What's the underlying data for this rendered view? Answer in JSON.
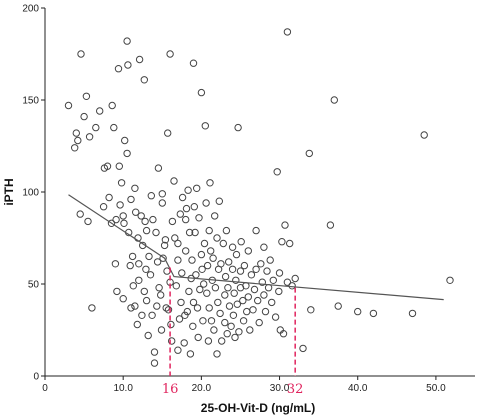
{
  "chart_data": {
    "type": "scatter",
    "xlabel": "25-OH-Vit-D (ng/mL)",
    "ylabel": "iPTH",
    "xlim": [
      0,
      55
    ],
    "ylim": [
      0,
      200
    ],
    "xticks": [
      {
        "value": 0,
        "label": "0"
      },
      {
        "value": 10,
        "label": "10.0"
      },
      {
        "value": 20,
        "label": "20.0"
      },
      {
        "value": 30,
        "label": "30.0"
      },
      {
        "value": 40,
        "label": "40.0"
      },
      {
        "value": 50,
        "label": "50.0"
      }
    ],
    "yticks": [
      {
        "value": 0,
        "label": "0"
      },
      {
        "value": 50,
        "label": "50"
      },
      {
        "value": 100,
        "label": "100"
      },
      {
        "value": 150,
        "label": "150"
      },
      {
        "value": 200,
        "label": "200"
      }
    ],
    "grid": false,
    "marker_color": "#444444",
    "fit_color": "#555555",
    "threshold_color": "#e0245e",
    "fit_line": [
      [
        3.0,
        98.5
      ],
      [
        15.3,
        64.0
      ],
      [
        16.5,
        54.0
      ],
      [
        51.0,
        41.5
      ]
    ],
    "thresholds": [
      {
        "x": 16,
        "y_top": 59,
        "label": "16"
      },
      {
        "x": 32,
        "y_top": 48,
        "label": "32"
      }
    ],
    "points": [
      [
        3.0,
        147
      ],
      [
        3.8,
        124
      ],
      [
        4.0,
        132
      ],
      [
        4.2,
        128
      ],
      [
        4.5,
        88
      ],
      [
        4.6,
        175
      ],
      [
        5.0,
        141
      ],
      [
        5.3,
        152
      ],
      [
        5.5,
        84
      ],
      [
        5.7,
        130
      ],
      [
        6.0,
        37
      ],
      [
        6.5,
        135
      ],
      [
        7.0,
        144
      ],
      [
        7.5,
        92
      ],
      [
        7.6,
        113
      ],
      [
        8.0,
        114
      ],
      [
        8.2,
        97
      ],
      [
        8.5,
        83
      ],
      [
        8.6,
        147
      ],
      [
        8.8,
        135
      ],
      [
        9.0,
        61
      ],
      [
        9.1,
        85
      ],
      [
        9.2,
        46
      ],
      [
        9.4,
        167
      ],
      [
        9.5,
        114
      ],
      [
        9.6,
        93
      ],
      [
        9.8,
        105
      ],
      [
        10.0,
        42
      ],
      [
        10.0,
        87
      ],
      [
        10.1,
        83
      ],
      [
        10.2,
        128
      ],
      [
        10.5,
        121
      ],
      [
        10.5,
        182
      ],
      [
        10.6,
        169
      ],
      [
        10.7,
        78
      ],
      [
        10.9,
        60
      ],
      [
        11.0,
        37
      ],
      [
        11.0,
        96
      ],
      [
        11.2,
        65
      ],
      [
        11.3,
        49
      ],
      [
        11.5,
        38
      ],
      [
        11.5,
        102
      ],
      [
        11.6,
        89
      ],
      [
        11.8,
        28
      ],
      [
        11.9,
        75
      ],
      [
        12.0,
        61
      ],
      [
        12.0,
        52
      ],
      [
        12.1,
        172
      ],
      [
        12.3,
        87
      ],
      [
        12.4,
        33
      ],
      [
        12.5,
        71
      ],
      [
        12.7,
        161
      ],
      [
        12.7,
        46
      ],
      [
        12.8,
        84
      ],
      [
        12.9,
        58
      ],
      [
        13.0,
        41
      ],
      [
        13.0,
        79
      ],
      [
        13.2,
        22
      ],
      [
        13.3,
        65
      ],
      [
        13.5,
        55
      ],
      [
        13.6,
        98
      ],
      [
        13.7,
        33
      ],
      [
        13.8,
        85
      ],
      [
        14.0,
        13
      ],
      [
        14.0,
        7
      ],
      [
        14.2,
        78
      ],
      [
        14.3,
        38
      ],
      [
        14.4,
        62
      ],
      [
        14.5,
        113
      ],
      [
        14.6,
        48
      ],
      [
        14.8,
        44
      ],
      [
        14.9,
        25
      ],
      [
        15.0,
        94
      ],
      [
        15.0,
        99
      ],
      [
        15.1,
        64
      ],
      [
        15.3,
        71
      ],
      [
        15.4,
        74
      ],
      [
        15.5,
        37
      ],
      [
        15.6,
        57
      ],
      [
        15.7,
        132
      ],
      [
        15.8,
        36
      ],
      [
        16.0,
        175
      ],
      [
        16.0,
        51
      ],
      [
        16.1,
        28
      ],
      [
        16.2,
        19
      ],
      [
        16.3,
        84
      ],
      [
        16.5,
        106
      ],
      [
        16.6,
        75
      ],
      [
        16.8,
        49
      ],
      [
        17.0,
        14
      ],
      [
        17.0,
        63
      ],
      [
        17.0,
        72
      ],
      [
        17.2,
        31
      ],
      [
        17.3,
        88
      ],
      [
        17.4,
        40
      ],
      [
        17.5,
        56
      ],
      [
        17.6,
        97
      ],
      [
        17.8,
        18
      ],
      [
        17.9,
        33
      ],
      [
        18.0,
        68
      ],
      [
        18.0,
        85
      ],
      [
        18.1,
        91
      ],
      [
        18.2,
        35
      ],
      [
        18.3,
        101
      ],
      [
        18.4,
        46
      ],
      [
        18.5,
        78
      ],
      [
        18.6,
        12
      ],
      [
        18.7,
        53
      ],
      [
        18.8,
        63
      ],
      [
        18.9,
        27
      ],
      [
        19.0,
        40
      ],
      [
        19.0,
        170
      ],
      [
        19.1,
        92
      ],
      [
        19.2,
        78
      ],
      [
        19.3,
        55
      ],
      [
        19.4,
        102
      ],
      [
        19.5,
        37
      ],
      [
        19.6,
        21
      ],
      [
        19.7,
        86
      ],
      [
        19.8,
        47
      ],
      [
        20.0,
        66
      ],
      [
        20.0,
        154
      ],
      [
        20.1,
        58
      ],
      [
        20.2,
        30
      ],
      [
        20.3,
        50
      ],
      [
        20.4,
        72
      ],
      [
        20.5,
        136
      ],
      [
        20.6,
        94
      ],
      [
        20.7,
        45
      ],
      [
        20.8,
        60
      ],
      [
        20.9,
        19
      ],
      [
        21.0,
        79
      ],
      [
        21.0,
        37
      ],
      [
        21.1,
        105
      ],
      [
        21.2,
        68
      ],
      [
        21.3,
        30
      ],
      [
        21.4,
        52
      ],
      [
        21.5,
        64
      ],
      [
        21.6,
        25
      ],
      [
        21.7,
        87
      ],
      [
        21.8,
        48
      ],
      [
        22.0,
        12
      ],
      [
        22.0,
        75
      ],
      [
        22.1,
        40
      ],
      [
        22.2,
        58
      ],
      [
        22.3,
        95
      ],
      [
        22.4,
        34
      ],
      [
        22.5,
        61
      ],
      [
        22.6,
        19
      ],
      [
        22.8,
        72
      ],
      [
        23.0,
        44
      ],
      [
        23.0,
        29
      ],
      [
        23.1,
        54
      ],
      [
        23.2,
        79
      ],
      [
        23.3,
        23
      ],
      [
        23.4,
        48
      ],
      [
        23.5,
        62
      ],
      [
        23.6,
        38
      ],
      [
        23.8,
        27
      ],
      [
        24.0,
        58
      ],
      [
        24.0,
        70
      ],
      [
        24.1,
        33
      ],
      [
        24.2,
        45
      ],
      [
        24.3,
        21
      ],
      [
        24.4,
        52
      ],
      [
        24.5,
        66
      ],
      [
        24.6,
        39
      ],
      [
        24.7,
        135
      ],
      [
        24.8,
        24
      ],
      [
        25.0,
        57
      ],
      [
        25.0,
        48
      ],
      [
        25.1,
        73
      ],
      [
        25.3,
        41
      ],
      [
        25.4,
        30
      ],
      [
        25.5,
        60
      ],
      [
        25.7,
        49
      ],
      [
        25.8,
        35
      ],
      [
        26.0,
        68
      ],
      [
        26.0,
        43
      ],
      [
        26.2,
        25
      ],
      [
        26.4,
        55
      ],
      [
        26.6,
        36
      ],
      [
        26.8,
        47
      ],
      [
        27.0,
        79
      ],
      [
        27.0,
        58
      ],
      [
        27.2,
        41
      ],
      [
        27.4,
        29
      ],
      [
        27.6,
        61
      ],
      [
        27.8,
        51
      ],
      [
        28.0,
        44
      ],
      [
        28.0,
        70
      ],
      [
        28.2,
        35
      ],
      [
        28.4,
        57
      ],
      [
        28.6,
        48
      ],
      [
        28.8,
        63
      ],
      [
        29.0,
        40
      ],
      [
        29.2,
        52
      ],
      [
        29.5,
        32
      ],
      [
        29.7,
        111
      ],
      [
        29.9,
        46
      ],
      [
        30.0,
        56
      ],
      [
        30.1,
        25
      ],
      [
        30.3,
        73
      ],
      [
        30.5,
        23
      ],
      [
        30.7,
        82
      ],
      [
        31.0,
        51
      ],
      [
        31.0,
        187
      ],
      [
        31.3,
        72
      ],
      [
        31.6,
        49
      ],
      [
        32.0,
        53
      ],
      [
        33.0,
        15
      ],
      [
        33.8,
        121
      ],
      [
        34.0,
        36
      ],
      [
        36.5,
        82
      ],
      [
        37.0,
        150
      ],
      [
        37.5,
        38
      ],
      [
        40.0,
        35
      ],
      [
        42.0,
        34
      ],
      [
        47.0,
        34
      ],
      [
        48.5,
        131
      ],
      [
        51.8,
        52
      ]
    ]
  }
}
